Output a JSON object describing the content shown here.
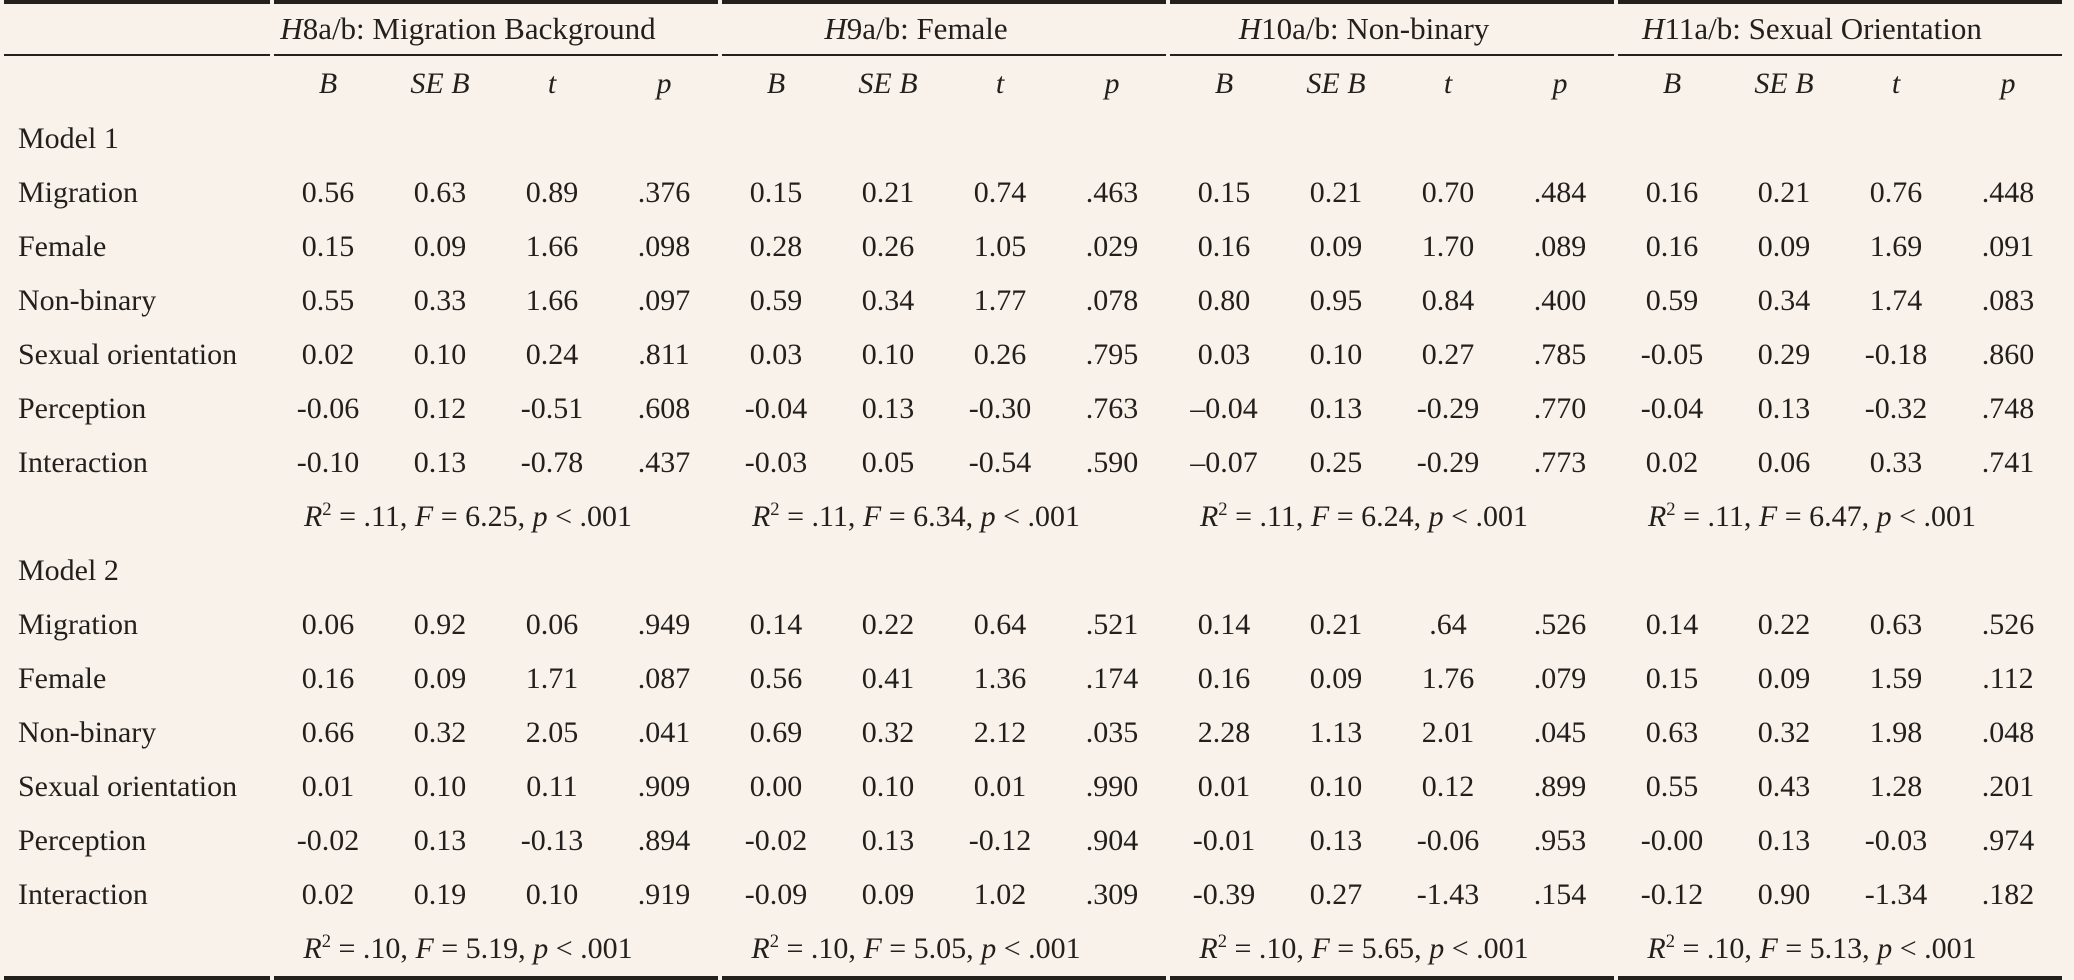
{
  "colors": {
    "background": "#f8f2ea",
    "text": "#221f1c",
    "rule": "#24211d"
  },
  "table": {
    "groups": [
      {
        "name": "h8-migration-background",
        "label_segments": [
          {
            "t": "H",
            "i": true
          },
          {
            "t": "8a/b: Migration Background"
          }
        ]
      },
      {
        "name": "h9-female",
        "label_segments": [
          {
            "t": "H",
            "i": true
          },
          {
            "t": "9a/b: Female"
          }
        ]
      },
      {
        "name": "h10-non-binary",
        "label_segments": [
          {
            "t": "H",
            "i": true
          },
          {
            "t": "10a/b: Non-binary"
          }
        ]
      },
      {
        "name": "h11-sexual-orientation",
        "label_segments": [
          {
            "t": "H",
            "i": true
          },
          {
            "t": "11a/b: Sexual Orientation"
          }
        ]
      }
    ],
    "column_headers": [
      "B",
      "SE B",
      "t",
      "p"
    ],
    "sections": [
      {
        "label": "Model 1",
        "rows": [
          {
            "label": "Migration",
            "values": [
              "0.56",
              "0.63",
              "0.89",
              ".376",
              "0.15",
              "0.21",
              "0.74",
              ".463",
              "0.15",
              "0.21",
              "0.70",
              ".484",
              "0.16",
              "0.21",
              "0.76",
              ".448"
            ]
          },
          {
            "label": "Female",
            "values": [
              "0.15",
              "0.09",
              "1.66",
              ".098",
              "0.28",
              "0.26",
              "1.05",
              ".029",
              "0.16",
              "0.09",
              "1.70",
              ".089",
              "0.16",
              "0.09",
              "1.69",
              ".091"
            ]
          },
          {
            "label": "Non-binary",
            "values": [
              "0.55",
              "0.33",
              "1.66",
              ".097",
              "0.59",
              "0.34",
              "1.77",
              ".078",
              "0.80",
              "0.95",
              "0.84",
              ".400",
              "0.59",
              "0.34",
              "1.74",
              ".083"
            ]
          },
          {
            "label": "Sexual orientation",
            "values": [
              "0.02",
              "0.10",
              "0.24",
              ".811",
              "0.03",
              "0.10",
              "0.26",
              ".795",
              "0.03",
              "0.10",
              "0.27",
              ".785",
              "-0.05",
              "0.29",
              "-0.18",
              ".860"
            ]
          },
          {
            "label": "Perception",
            "values": [
              "-0.06",
              "0.12",
              "-0.51",
              ".608",
              "-0.04",
              "0.13",
              "-0.30",
              ".763",
              "–0.04",
              "0.13",
              "-0.29",
              ".770",
              "-0.04",
              "0.13",
              "-0.32",
              ".748"
            ]
          },
          {
            "label": "Interaction",
            "values": [
              "-0.10",
              "0.13",
              "-0.78",
              ".437",
              "-0.03",
              "0.05",
              "-0.54",
              ".590",
              "–0.07",
              "0.25",
              "-0.29",
              ".773",
              "0.02",
              "0.06",
              "0.33",
              ".741"
            ]
          }
        ],
        "fits": [
          [
            {
              "t": "R",
              "i": true
            },
            {
              "t": "2",
              "sup": true
            },
            {
              "t": " = .11, "
            },
            {
              "t": "F",
              "i": true
            },
            {
              "t": " = 6.25, "
            },
            {
              "t": "p",
              "i": true
            },
            {
              "t": " < .001"
            }
          ],
          [
            {
              "t": "R",
              "i": true
            },
            {
              "t": "2",
              "sup": true
            },
            {
              "t": " = .11, "
            },
            {
              "t": "F",
              "i": true
            },
            {
              "t": " = 6.34, "
            },
            {
              "t": "p",
              "i": true
            },
            {
              "t": " < .001"
            }
          ],
          [
            {
              "t": "R",
              "i": true
            },
            {
              "t": "2",
              "sup": true
            },
            {
              "t": " = .11, "
            },
            {
              "t": "F",
              "i": true
            },
            {
              "t": " = 6.24, "
            },
            {
              "t": "p",
              "i": true
            },
            {
              "t": " < .001"
            }
          ],
          [
            {
              "t": "R",
              "i": true
            },
            {
              "t": "2",
              "sup": true
            },
            {
              "t": " = .11, "
            },
            {
              "t": "F",
              "i": true
            },
            {
              "t": " = 6.47, "
            },
            {
              "t": "p",
              "i": true
            },
            {
              "t": " < .001"
            }
          ]
        ]
      },
      {
        "label": "Model 2",
        "rows": [
          {
            "label": "Migration",
            "values": [
              "0.06",
              "0.92",
              "0.06",
              ".949",
              "0.14",
              "0.22",
              "0.64",
              ".521",
              "0.14",
              "0.21",
              ".64",
              ".526",
              "0.14",
              "0.22",
              "0.63",
              ".526"
            ]
          },
          {
            "label": "Female",
            "values": [
              "0.16",
              "0.09",
              "1.71",
              ".087",
              "0.56",
              "0.41",
              "1.36",
              ".174",
              "0.16",
              "0.09",
              "1.76",
              ".079",
              "0.15",
              "0.09",
              "1.59",
              ".112"
            ]
          },
          {
            "label": "Non-binary",
            "values": [
              "0.66",
              "0.32",
              "2.05",
              ".041",
              "0.69",
              "0.32",
              "2.12",
              ".035",
              "2.28",
              "1.13",
              "2.01",
              ".045",
              "0.63",
              "0.32",
              "1.98",
              ".048"
            ]
          },
          {
            "label": "Sexual orientation",
            "values": [
              "0.01",
              "0.10",
              "0.11",
              ".909",
              "0.00",
              "0.10",
              "0.01",
              ".990",
              "0.01",
              "0.10",
              "0.12",
              ".899",
              "0.55",
              "0.43",
              "1.28",
              ".201"
            ]
          },
          {
            "label": "Perception",
            "values": [
              "-0.02",
              "0.13",
              "-0.13",
              ".894",
              "-0.02",
              "0.13",
              "-0.12",
              ".904",
              "-0.01",
              "0.13",
              "-0.06",
              ".953",
              "-0.00",
              "0.13",
              "-0.03",
              ".974"
            ]
          },
          {
            "label": "Interaction",
            "values": [
              "0.02",
              "0.19",
              "0.10",
              ".919",
              "-0.09",
              "0.09",
              "1.02",
              ".309",
              "-0.39",
              "0.27",
              "-1.43",
              ".154",
              "-0.12",
              "0.90",
              "-1.34",
              ".182"
            ]
          }
        ],
        "fits": [
          [
            {
              "t": "R",
              "i": true
            },
            {
              "t": "2",
              "sup": true
            },
            {
              "t": " = .10, "
            },
            {
              "t": "F",
              "i": true
            },
            {
              "t": " = 5.19, "
            },
            {
              "t": "p",
              "i": true
            },
            {
              "t": " < .001"
            }
          ],
          [
            {
              "t": "R",
              "i": true
            },
            {
              "t": "2",
              "sup": true
            },
            {
              "t": " = .10, "
            },
            {
              "t": "F",
              "i": true
            },
            {
              "t": " = 5.05, "
            },
            {
              "t": "p",
              "i": true
            },
            {
              "t": " < .001"
            }
          ],
          [
            {
              "t": "R",
              "i": true
            },
            {
              "t": "2",
              "sup": true
            },
            {
              "t": " = .10, "
            },
            {
              "t": "F",
              "i": true
            },
            {
              "t": " = 5.65, "
            },
            {
              "t": "p",
              "i": true
            },
            {
              "t": " < .001"
            }
          ],
          [
            {
              "t": "R",
              "i": true
            },
            {
              "t": "2",
              "sup": true
            },
            {
              "t": " = .10, "
            },
            {
              "t": "F",
              "i": true
            },
            {
              "t": " = 5.13, "
            },
            {
              "t": "p",
              "i": true
            },
            {
              "t": " < .001"
            }
          ]
        ]
      }
    ]
  }
}
